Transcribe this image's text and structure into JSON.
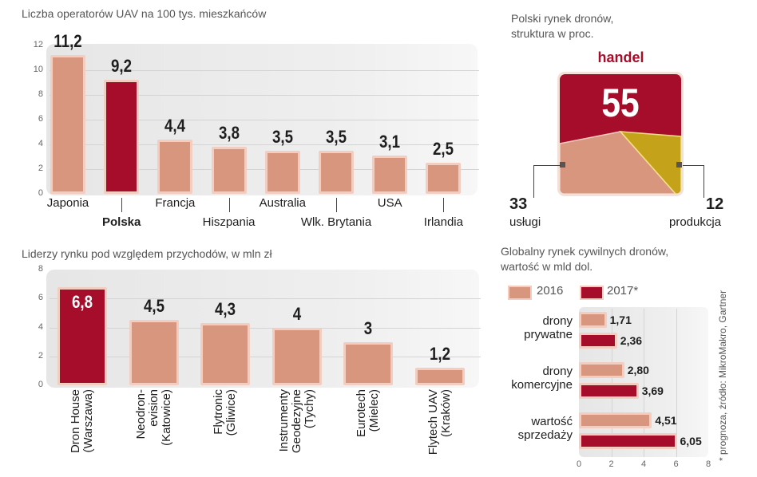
{
  "colors": {
    "base": "#d9967f",
    "highlight": "#a50d2a",
    "gold": "#c4a21a",
    "bar_border": "#f3cdbf"
  },
  "chart_data": [
    {
      "type": "bar",
      "title": "Liczba operatorów UAV na 100 tys. mieszkańców",
      "categories": [
        "Japonia",
        "Polska",
        "Francja",
        "Hiszpania",
        "Australia",
        "Wlk. Brytania",
        "USA",
        "Irlandia"
      ],
      "values": [
        11.2,
        9.2,
        4.4,
        3.8,
        3.5,
        3.5,
        3.1,
        2.5
      ],
      "value_labels": [
        "11,2",
        "9,2",
        "4,4",
        "3,8",
        "3,5",
        "3,5",
        "3,1",
        "2,5"
      ],
      "highlight": "Polska",
      "ylim": [
        0,
        12
      ],
      "yticks": [
        0,
        2,
        4,
        6,
        8,
        10,
        12
      ],
      "grid": true
    },
    {
      "type": "bar",
      "title": "Liderzy rynku pod względem przychodów, w mln zł",
      "categories": [
        [
          "Dron House",
          "(Warszawa)"
        ],
        [
          "Neodron-",
          "evision",
          "(Katowice)"
        ],
        [
          "Flytronic",
          "(Gliwice)"
        ],
        [
          "Instrumenty",
          "Geodezyjne",
          "(Tychy)"
        ],
        [
          "Eurotech",
          "(Mielec)"
        ],
        [
          "Flytech UAV",
          "(Kraków)"
        ]
      ],
      "values": [
        6.8,
        4.5,
        4.3,
        4,
        3,
        1.2
      ],
      "value_labels": [
        "6,8",
        "4,5",
        "4,3",
        "4",
        "3",
        "1,2"
      ],
      "highlight": "Dron House",
      "ylim": [
        0,
        8
      ],
      "yticks": [
        0,
        2,
        4,
        6,
        8
      ],
      "grid": true
    },
    {
      "type": "pie",
      "title_lines": [
        "Polski rynek dronów,",
        "struktura w proc."
      ],
      "slices": [
        {
          "label": "handel",
          "value": 55,
          "value_label": "55"
        },
        {
          "label": "usługi",
          "value": 33,
          "value_label": "33"
        },
        {
          "label": "produkcja",
          "value": 12,
          "value_label": "12"
        }
      ]
    },
    {
      "type": "bar",
      "orientation": "horizontal",
      "title_lines": [
        "Globalny rynek cywilnych dronów,",
        "wartość w mld dol."
      ],
      "legend": [
        "2016",
        "2017*"
      ],
      "categories": [
        [
          "drony",
          "prywatne"
        ],
        [
          "drony",
          "komercyjne"
        ],
        [
          "wartość",
          "sprzedaży"
        ]
      ],
      "series": [
        {
          "name": "2016",
          "values": [
            1.71,
            2.8,
            4.51
          ],
          "labels": [
            "1,71",
            "2,80",
            "4,51"
          ]
        },
        {
          "name": "2017*",
          "values": [
            2.36,
            3.69,
            6.05
          ],
          "labels": [
            "2,36",
            "3,69",
            "6,05"
          ]
        }
      ],
      "xlim": [
        0,
        8
      ],
      "xticks": [
        0,
        2,
        4,
        6,
        8
      ],
      "grid": true,
      "note": "* prognoza, źródło: MikroMakro, Gartner"
    }
  ]
}
